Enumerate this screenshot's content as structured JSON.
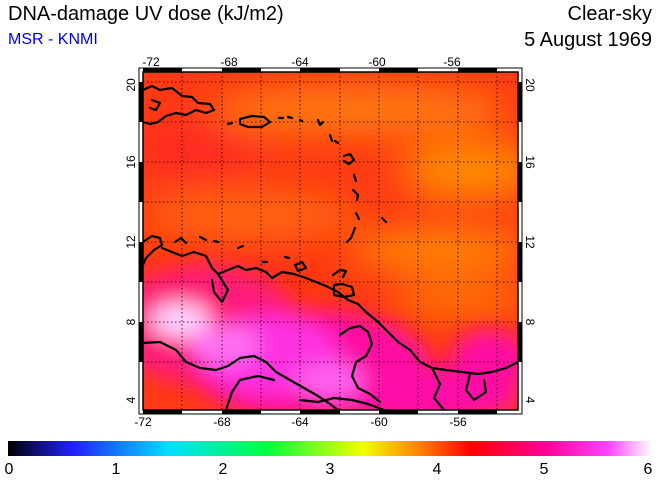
{
  "header": {
    "title": "DNA-damage UV dose (kJ/m2)",
    "source": "MSR - KNMI",
    "sky": "Clear-sky",
    "date": "5 August 1969"
  },
  "map": {
    "lon_range": [
      -72,
      -53
    ],
    "lat_range": [
      3.5,
      20.5
    ],
    "lon_ticks": [
      "-72",
      "-68",
      "-64",
      "-60",
      "-56"
    ],
    "lat_ticks": [
      "4",
      "8",
      "12",
      "16",
      "20"
    ],
    "grid": "dotted",
    "colors": {
      "coast": "#000000"
    }
  },
  "colorbar": {
    "min": 0,
    "max": 6,
    "labels": [
      "0",
      "1",
      "2",
      "3",
      "4",
      "5",
      "6"
    ],
    "stops": [
      "#000000",
      "#2020ff",
      "#00e0ff",
      "#00ff40",
      "#f0ff00",
      "#ff8000",
      "#ff0000",
      "#ff0090",
      "#ff40ff",
      "#ffffff"
    ]
  }
}
